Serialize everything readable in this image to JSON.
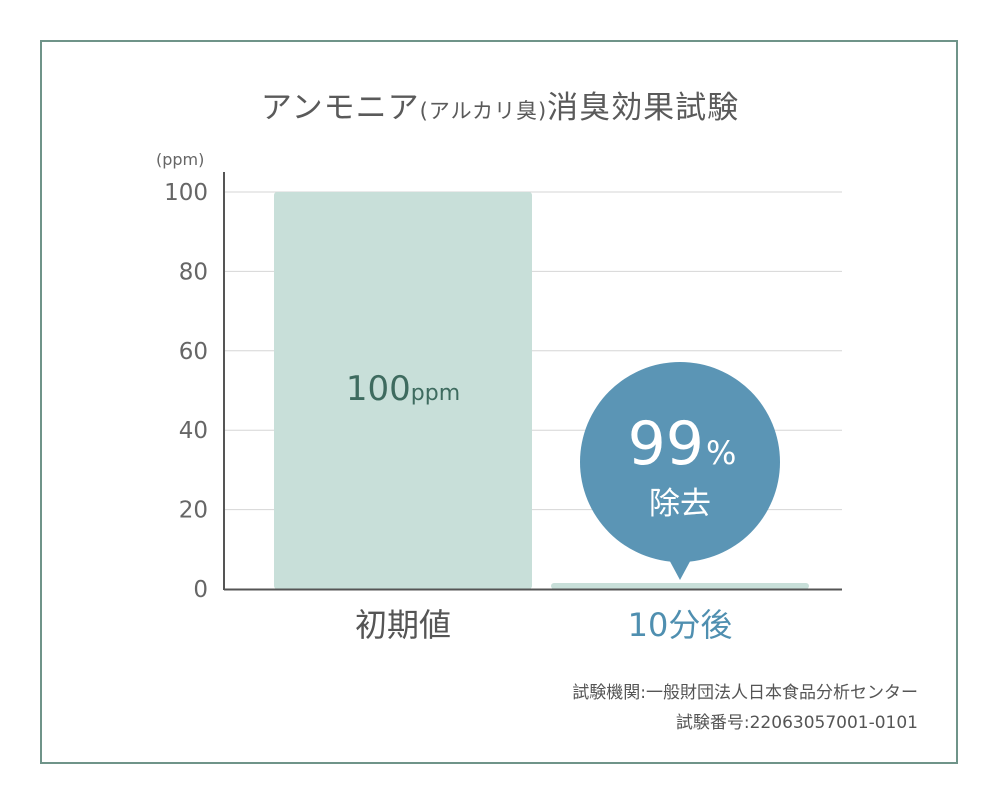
{
  "title_main": "アンモニア",
  "title_sub": "(アルカリ臭)",
  "title_end": "消臭効果試験",
  "unit_label": "(ppm)",
  "badge": {
    "value": "99",
    "percent": "%",
    "text": "除去"
  },
  "bar_value_label": {
    "value": "100",
    "unit": "ppm"
  },
  "notes": {
    "institution": "試験機関:一般財団法人日本食品分析センター",
    "test_number": "試験番号:22063057001-0101"
  },
  "colors": {
    "bar": "#c8dfd9",
    "badge": "#5b95b5",
    "frame": "#6f9489",
    "cat_after": "#4f8fb0",
    "cat_before": "#555555"
  },
  "chart_data": {
    "type": "bar",
    "categories": [
      "初期値",
      "10分後"
    ],
    "values": [
      100,
      1
    ],
    "ylim": [
      0,
      100
    ],
    "yticks": [
      "0",
      "20",
      "40",
      "60",
      "80",
      "100"
    ],
    "ylabel": "(ppm)",
    "grid": true
  }
}
